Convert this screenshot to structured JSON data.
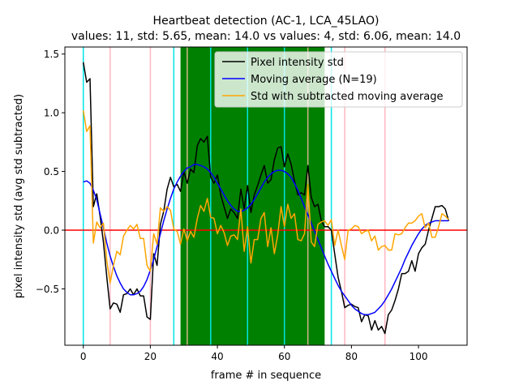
{
  "chart_data": {
    "type": "line",
    "title": "Heartbeat detection (AC-1, LCA_45LAO)",
    "subtitle": "values: 11, std: 5.65, mean: 14.0 vs values: 4, std: 6.06, mean: 14.0",
    "xlabel": "frame # in sequence",
    "ylabel": "pixel intensity std (avg std subtracted)",
    "xlim": [
      -5.5,
      114.5
    ],
    "ylim": [
      -0.98,
      1.56
    ],
    "xticks": [
      0,
      20,
      40,
      60,
      80,
      100
    ],
    "yticks": [
      -0.5,
      0.0,
      0.5,
      1.0,
      1.5
    ],
    "xtick_labels": [
      "0",
      "20",
      "40",
      "60",
      "80",
      "100"
    ],
    "ytick_labels": [
      "−0.5",
      "0.0",
      "0.5",
      "1.0",
      "1.5"
    ],
    "grid": false,
    "legend_position": "top-right",
    "shaded_span": {
      "x": [
        29,
        72
      ],
      "color": "#008000"
    },
    "zero_line": {
      "y": 0.0,
      "color": "#ff0000"
    },
    "vertical_lines": {
      "cyan": {
        "color": "#00e5e5",
        "x": [
          0,
          27,
          38,
          49,
          60,
          74
        ]
      },
      "pink": {
        "color": "#ffb6c1",
        "x": [
          8,
          20,
          78,
          90
        ]
      },
      "tan": {
        "color": "#d2b48c",
        "x": [
          31,
          67
        ]
      }
    },
    "series": [
      {
        "name": "Pixel intensity std",
        "color": "#000000",
        "x": [
          0,
          1,
          2,
          3,
          4,
          5,
          6,
          7,
          8,
          9,
          10,
          11,
          12,
          13,
          14,
          15,
          16,
          17,
          18,
          19,
          20,
          21,
          22,
          23,
          24,
          25,
          26,
          27,
          28,
          29,
          30,
          31,
          32,
          33,
          34,
          35,
          36,
          37,
          38,
          39,
          40,
          41,
          42,
          43,
          44,
          45,
          46,
          47,
          48,
          49,
          50,
          51,
          52,
          53,
          54,
          55,
          56,
          57,
          58,
          59,
          60,
          61,
          62,
          63,
          64,
          65,
          66,
          67,
          68,
          69,
          70,
          71,
          72,
          73,
          74,
          75,
          76,
          77,
          78,
          79,
          80,
          81,
          82,
          83,
          84,
          85,
          86,
          87,
          88,
          89,
          90,
          91,
          92,
          93,
          94,
          95,
          96,
          97,
          98,
          99,
          100,
          101,
          102,
          103,
          104,
          105,
          106,
          107,
          108,
          109
        ],
        "y": [
          1.43,
          1.26,
          1.29,
          0.2,
          0.31,
          0.12,
          -0.1,
          -0.4,
          -0.67,
          -0.62,
          -0.63,
          -0.7,
          -0.55,
          -0.54,
          -0.5,
          -0.55,
          -0.5,
          -0.56,
          -0.56,
          -0.74,
          -0.76,
          -0.2,
          -0.3,
          0.05,
          0.16,
          0.35,
          0.45,
          0.37,
          0.39,
          0.33,
          0.5,
          0.4,
          0.52,
          0.49,
          0.72,
          0.78,
          0.75,
          0.8,
          0.45,
          0.4,
          0.47,
          0.3,
          0.2,
          0.1,
          0.18,
          0.15,
          0.1,
          0.35,
          0.18,
          0.38,
          0.15,
          0.3,
          0.38,
          0.47,
          0.55,
          0.4,
          0.43,
          0.6,
          0.7,
          0.71,
          0.54,
          0.65,
          0.56,
          0.42,
          0.3,
          0.32,
          0.3,
          0.55,
          0.28,
          0.2,
          0.22,
          0.08,
          0.03,
          0.03,
          0.0,
          -0.2,
          -0.4,
          -0.52,
          -0.66,
          -0.64,
          -0.63,
          -0.65,
          -0.66,
          -0.78,
          -0.72,
          -0.73,
          -0.85,
          -0.77,
          -0.85,
          -0.82,
          -0.88,
          -0.72,
          -0.68,
          -0.6,
          -0.5,
          -0.37,
          -0.37,
          -0.35,
          -0.26,
          -0.35,
          -0.2,
          -0.15,
          -0.12,
          0.0,
          0.1,
          0.2,
          0.2,
          0.21,
          0.18,
          0.08
        ],
        "linewidth": 1.5
      },
      {
        "name": "Moving average (N=19)",
        "color": "#0000ff",
        "x": [
          0,
          1,
          2,
          3,
          4,
          5,
          6,
          7,
          8,
          9,
          10,
          11,
          12,
          13,
          14,
          15,
          16,
          17,
          18,
          19,
          20,
          21,
          22,
          23,
          24,
          25,
          26,
          27,
          28,
          29,
          30,
          31,
          32,
          33,
          34,
          35,
          36,
          37,
          38,
          39,
          40,
          41,
          42,
          43,
          44,
          45,
          46,
          47,
          48,
          49,
          50,
          51,
          52,
          53,
          54,
          55,
          56,
          57,
          58,
          59,
          60,
          61,
          62,
          63,
          64,
          65,
          66,
          67,
          68,
          69,
          70,
          71,
          72,
          73,
          74,
          75,
          76,
          77,
          78,
          79,
          80,
          81,
          82,
          83,
          84,
          85,
          86,
          87,
          88,
          89,
          90,
          91,
          92,
          93,
          94,
          95,
          96,
          97,
          98,
          99,
          100,
          101,
          102,
          103,
          104,
          105,
          106,
          107,
          108,
          109
        ],
        "y": [
          0.41,
          0.42,
          0.4,
          0.34,
          0.26,
          0.14,
          0.02,
          -0.11,
          -0.22,
          -0.31,
          -0.39,
          -0.45,
          -0.5,
          -0.53,
          -0.55,
          -0.55,
          -0.54,
          -0.52,
          -0.48,
          -0.42,
          -0.34,
          -0.25,
          -0.14,
          -0.03,
          0.08,
          0.18,
          0.27,
          0.35,
          0.41,
          0.46,
          0.5,
          0.53,
          0.54,
          0.56,
          0.56,
          0.55,
          0.54,
          0.52,
          0.49,
          0.45,
          0.4,
          0.35,
          0.3,
          0.25,
          0.21,
          0.18,
          0.16,
          0.16,
          0.17,
          0.19,
          0.22,
          0.26,
          0.31,
          0.36,
          0.41,
          0.45,
          0.48,
          0.5,
          0.51,
          0.51,
          0.5,
          0.48,
          0.45,
          0.4,
          0.34,
          0.27,
          0.2,
          0.13,
          0.06,
          -0.01,
          -0.08,
          -0.15,
          -0.22,
          -0.29,
          -0.35,
          -0.41,
          -0.47,
          -0.52,
          -0.56,
          -0.6,
          -0.64,
          -0.67,
          -0.69,
          -0.71,
          -0.72,
          -0.72,
          -0.71,
          -0.7,
          -0.67,
          -0.64,
          -0.6,
          -0.55,
          -0.5,
          -0.44,
          -0.38,
          -0.32,
          -0.25,
          -0.19,
          -0.13,
          -0.08,
          -0.03,
          0.01,
          0.04,
          0.06,
          0.07,
          0.08,
          0.08,
          0.08,
          0.08,
          0.08
        ],
        "linewidth": 1.5
      },
      {
        "name": "Std with subtracted moving average",
        "color": "#ffa500",
        "x": [
          0,
          1,
          2,
          3,
          4,
          5,
          6,
          7,
          8,
          9,
          10,
          11,
          12,
          13,
          14,
          15,
          16,
          17,
          18,
          19,
          20,
          21,
          22,
          23,
          24,
          25,
          26,
          27,
          28,
          29,
          30,
          31,
          32,
          33,
          34,
          35,
          36,
          37,
          38,
          39,
          40,
          41,
          42,
          43,
          44,
          45,
          46,
          47,
          48,
          49,
          50,
          51,
          52,
          53,
          54,
          55,
          56,
          57,
          58,
          59,
          60,
          61,
          62,
          63,
          64,
          65,
          66,
          67,
          68,
          69,
          70,
          71,
          72,
          73,
          74,
          75,
          76,
          77,
          78,
          79,
          80,
          81,
          82,
          83,
          84,
          85,
          86,
          87,
          88,
          89,
          90,
          91,
          92,
          93,
          94,
          95,
          96,
          97,
          98,
          99,
          100,
          101,
          102,
          103,
          104,
          105,
          106,
          107,
          108,
          109
        ],
        "y": [
          1.02,
          0.84,
          0.89,
          -0.11,
          0.07,
          0.02,
          0.06,
          -0.26,
          -0.45,
          -0.3,
          -0.18,
          -0.21,
          -0.05,
          0.0,
          0.04,
          0.01,
          0.05,
          -0.07,
          -0.07,
          -0.3,
          -0.35,
          -0.03,
          -0.12,
          0.19,
          0.16,
          0.2,
          0.17,
          0.01,
          -0.01,
          -0.12,
          0.01,
          -0.09,
          -0.01,
          -0.06,
          0.1,
          0.21,
          0.16,
          0.27,
          0.11,
          0.1,
          -0.03,
          0.04,
          -0.02,
          -0.13,
          -0.05,
          -0.04,
          -0.08,
          0.18,
          -0.18,
          0.03,
          -0.28,
          -0.08,
          -0.08,
          0.1,
          0.15,
          -0.14,
          0.02,
          -0.2,
          -0.04,
          0.2,
          0.03,
          0.22,
          0.1,
          0.14,
          -0.08,
          -0.09,
          -0.03,
          0.39,
          -0.1,
          -0.14,
          0.05,
          0.07,
          0.08,
          0.04,
          0.09,
          -0.13,
          0.0,
          -0.13,
          -0.25,
          0.0,
          0.01,
          0.04,
          0.03,
          -0.03,
          -0.01,
          0.0,
          -0.09,
          -0.05,
          -0.17,
          -0.14,
          -0.13,
          -0.17,
          -0.17,
          -0.03,
          -0.04,
          -0.03,
          0.02,
          0.06,
          0.06,
          0.08,
          0.12,
          0.14,
          0.02,
          0.06,
          -0.06,
          -0.06,
          0.03,
          0.14,
          0.12,
          0.09
        ],
        "linewidth": 1.5
      }
    ]
  }
}
